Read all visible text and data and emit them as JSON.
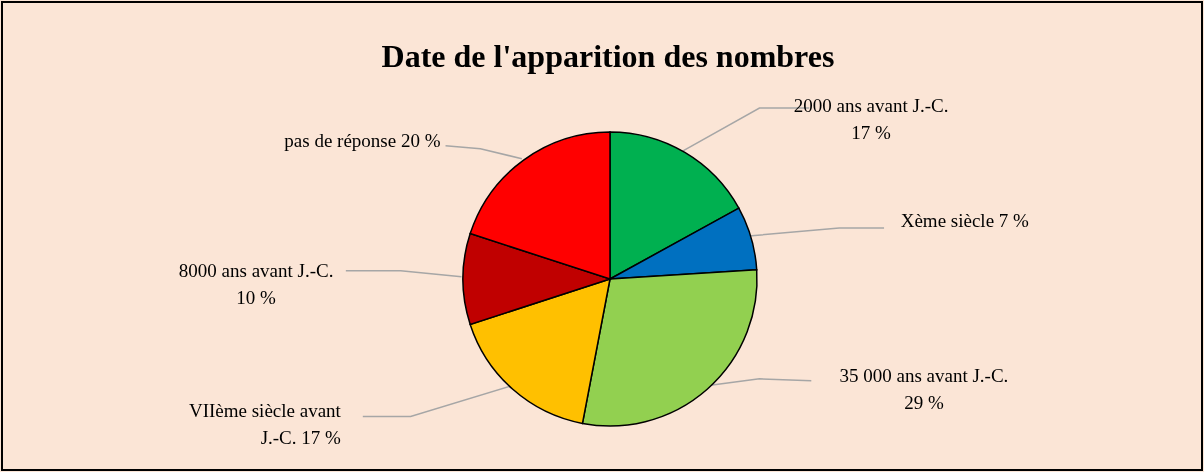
{
  "chart_data": {
    "type": "pie",
    "title": "Date de l'apparition des nombres",
    "categories": [
      "2000 ans avant J.-C.",
      "Xème siècle",
      "35 000 ans avant J.-C.",
      "VIIème siècle  avant\nJ.-C.",
      "8000 ans avant J.-C.",
      "pas de réponse"
    ],
    "values": [
      17,
      7,
      29,
      17,
      10,
      20
    ],
    "colors": [
      "#00b050",
      "#0070c0",
      "#92d050",
      "#ffc000",
      "#c00000",
      "#ff0000"
    ],
    "value_labels": [
      "17 %",
      "7 %",
      "29 %",
      "17 %",
      "10 %",
      "20  %"
    ]
  }
}
